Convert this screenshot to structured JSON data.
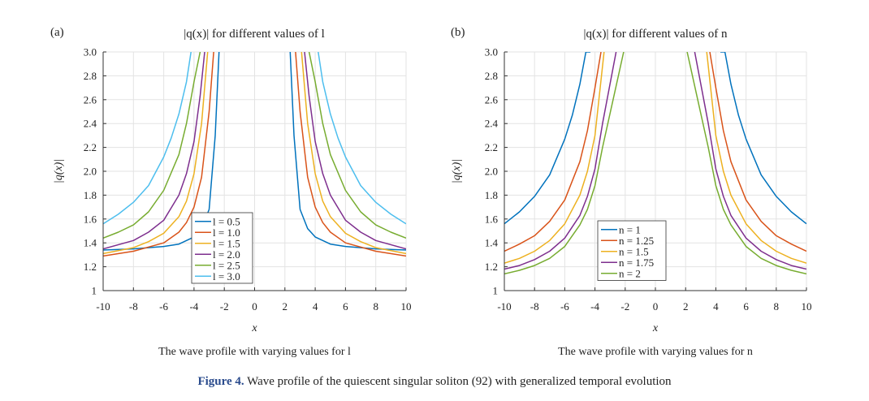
{
  "figure_caption": {
    "label": "Figure 4.",
    "text": "Wave profile of the quiescent singular soliton (92) with generalized temporal evolution"
  },
  "chart_data": [
    {
      "type": "line",
      "panel_label": "(a)",
      "title": "|q(x)| for different values of l",
      "xlabel": "x",
      "ylabel": "|q(x)|",
      "subcaption": "The wave profile with varying values for l",
      "xlim": [
        -10,
        10
      ],
      "ylim": [
        1,
        3
      ],
      "xticks": [
        -10,
        -8,
        -6,
        -4,
        -2,
        0,
        2,
        4,
        6,
        8,
        10
      ],
      "yticks": [
        1,
        1.2,
        1.4,
        1.6,
        1.8,
        2.0,
        2.2,
        2.4,
        2.6,
        2.8,
        3.0
      ],
      "ytick_labels": [
        "1",
        "1.2",
        "1.4",
        "1.6",
        "1.8",
        "2.0",
        "2.2",
        "2.4",
        "2.6",
        "2.8",
        "3.0"
      ],
      "grid": true,
      "legend_position": "bottom-center",
      "series": [
        {
          "name": "l = 0.5",
          "color": "#0072BD",
          "x": [
            -10,
            -8,
            -6,
            -5,
            -4,
            -3.5,
            -3,
            -2.6,
            -2.35,
            2.35,
            2.6,
            3,
            3.5,
            4,
            5,
            6,
            8,
            10
          ],
          "y": [
            1.34,
            1.35,
            1.37,
            1.39,
            1.45,
            1.52,
            1.68,
            2.3,
            3.0,
            3.0,
            2.3,
            1.68,
            1.52,
            1.45,
            1.39,
            1.37,
            1.35,
            1.34
          ]
        },
        {
          "name": "l = 1.0",
          "color": "#D95319",
          "x": [
            -10,
            -8,
            -6,
            -5,
            -4.5,
            -4,
            -3.5,
            -3,
            -2.7,
            2.7,
            3,
            3.5,
            4,
            4.5,
            5,
            6,
            8,
            10
          ],
          "y": [
            1.29,
            1.33,
            1.4,
            1.49,
            1.57,
            1.7,
            1.95,
            2.5,
            3.0,
            3.0,
            2.5,
            1.95,
            1.7,
            1.57,
            1.49,
            1.4,
            1.33,
            1.29
          ]
        },
        {
          "name": "l = 1.5",
          "color": "#EDB120",
          "x": [
            -10,
            -8,
            -7,
            -6,
            -5,
            -4.5,
            -4,
            -3.5,
            -3.1,
            3.1,
            3.5,
            4,
            4.5,
            5,
            6,
            7,
            8,
            10
          ],
          "y": [
            1.31,
            1.36,
            1.41,
            1.48,
            1.62,
            1.75,
            1.98,
            2.4,
            3.0,
            3.0,
            2.4,
            1.98,
            1.75,
            1.62,
            1.48,
            1.41,
            1.36,
            1.31
          ]
        },
        {
          "name": "l = 2.0",
          "color": "#7E2F8E",
          "x": [
            -10,
            -8,
            -7,
            -6,
            -5,
            -4.5,
            -4,
            -3.6,
            -3.3,
            3.3,
            3.6,
            4,
            4.5,
            5,
            6,
            7,
            8,
            10
          ],
          "y": [
            1.35,
            1.42,
            1.49,
            1.59,
            1.8,
            1.98,
            2.25,
            2.63,
            3.0,
            3.0,
            2.63,
            2.25,
            1.98,
            1.8,
            1.59,
            1.49,
            1.42,
            1.35
          ]
        },
        {
          "name": "l = 2.5",
          "color": "#77AC30",
          "x": [
            -10,
            -9,
            -8,
            -7,
            -6,
            -5,
            -4.5,
            -4,
            -3.6,
            3.6,
            4,
            4.5,
            5,
            6,
            7,
            8,
            9,
            10
          ],
          "y": [
            1.44,
            1.49,
            1.55,
            1.66,
            1.84,
            2.14,
            2.4,
            2.75,
            3.0,
            3.0,
            2.75,
            2.4,
            2.14,
            1.84,
            1.66,
            1.55,
            1.49,
            1.44
          ]
        },
        {
          "name": "l = 3.0",
          "color": "#4DBEEE",
          "x": [
            -10,
            -9,
            -8,
            -7,
            -6,
            -5.5,
            -5,
            -4.5,
            -4.2,
            4.2,
            4.5,
            5,
            5.5,
            6,
            7,
            8,
            9,
            10
          ],
          "y": [
            1.56,
            1.64,
            1.74,
            1.88,
            2.12,
            2.28,
            2.48,
            2.75,
            3.0,
            3.0,
            2.75,
            2.48,
            2.28,
            2.12,
            1.88,
            1.74,
            1.64,
            1.56
          ]
        }
      ]
    },
    {
      "type": "line",
      "panel_label": "(b)",
      "title": "|q(x)| for different values of n",
      "xlabel": "x",
      "ylabel": "|q(x)|",
      "subcaption": "The wave profile with varying values for n",
      "xlim": [
        -10,
        10
      ],
      "ylim": [
        1,
        3
      ],
      "xticks": [
        -10,
        -8,
        -6,
        -4,
        -2,
        0,
        2,
        4,
        6,
        8,
        10
      ],
      "yticks": [
        1,
        1.2,
        1.4,
        1.6,
        1.8,
        2.0,
        2.2,
        2.4,
        2.6,
        2.8,
        3.0
      ],
      "ytick_labels": [
        "1",
        "1.2",
        "1.4",
        "1.6",
        "1.8",
        "2.0",
        "2.2",
        "2.4",
        "2.6",
        "2.8",
        "3.0"
      ],
      "grid": true,
      "legend_position": "bottom-center",
      "series": [
        {
          "name": "n = 1",
          "color": "#0072BD",
          "x": [
            -10,
            -9,
            -8,
            -7,
            -6,
            -5.5,
            -5,
            -4.6,
            -4.3,
            4.3,
            4.6,
            5,
            5.5,
            6,
            7,
            8,
            9,
            10
          ],
          "y": [
            1.56,
            1.66,
            1.79,
            1.97,
            2.27,
            2.47,
            2.73,
            3.0,
            3.0,
            3.0,
            3.0,
            2.73,
            2.47,
            2.27,
            1.97,
            1.79,
            1.66,
            1.56
          ]
        },
        {
          "name": "n = 1.25",
          "color": "#D95319",
          "x": [
            -10,
            -9,
            -8,
            -7,
            -6,
            -5,
            -4.5,
            -4,
            -3.6,
            3.6,
            4,
            4.5,
            5,
            6,
            7,
            8,
            9,
            10
          ],
          "y": [
            1.33,
            1.39,
            1.46,
            1.58,
            1.76,
            2.08,
            2.34,
            2.7,
            3.0,
            3.0,
            2.7,
            2.34,
            2.08,
            1.76,
            1.58,
            1.46,
            1.39,
            1.33
          ]
        },
        {
          "name": "n = 1.5",
          "color": "#EDB120",
          "x": [
            -10,
            -9,
            -8,
            -7,
            -6,
            -5,
            -4.5,
            -4,
            -3.4,
            3.4,
            4,
            4.5,
            5,
            6,
            7,
            8,
            9,
            10
          ],
          "y": [
            1.23,
            1.27,
            1.33,
            1.42,
            1.56,
            1.8,
            2.0,
            2.3,
            3.0,
            3.0,
            2.3,
            2.0,
            1.8,
            1.56,
            1.42,
            1.33,
            1.27,
            1.23
          ]
        },
        {
          "name": "n = 1.75",
          "color": "#7E2F8E",
          "x": [
            -10,
            -9,
            -8,
            -7,
            -6,
            -5,
            -4.5,
            -4,
            -3.5,
            -2.6,
            2.6,
            3.5,
            4,
            4.5,
            5,
            6,
            7,
            8,
            9,
            10
          ],
          "y": [
            1.18,
            1.21,
            1.26,
            1.33,
            1.44,
            1.63,
            1.79,
            2.02,
            2.4,
            3.0,
            3.0,
            2.4,
            2.02,
            1.79,
            1.63,
            1.44,
            1.33,
            1.26,
            1.21,
            1.18
          ]
        },
        {
          "name": "n = 2",
          "color": "#77AC30",
          "x": [
            -10,
            -9,
            -8,
            -7,
            -6,
            -5,
            -4.5,
            -4,
            -3.5,
            -2.1,
            2.1,
            3.5,
            4,
            4.5,
            5,
            6,
            7,
            8,
            9,
            10
          ],
          "y": [
            1.14,
            1.17,
            1.21,
            1.27,
            1.37,
            1.55,
            1.68,
            1.88,
            2.2,
            3.0,
            3.0,
            2.2,
            1.88,
            1.68,
            1.55,
            1.37,
            1.27,
            1.21,
            1.17,
            1.14
          ]
        }
      ]
    }
  ]
}
